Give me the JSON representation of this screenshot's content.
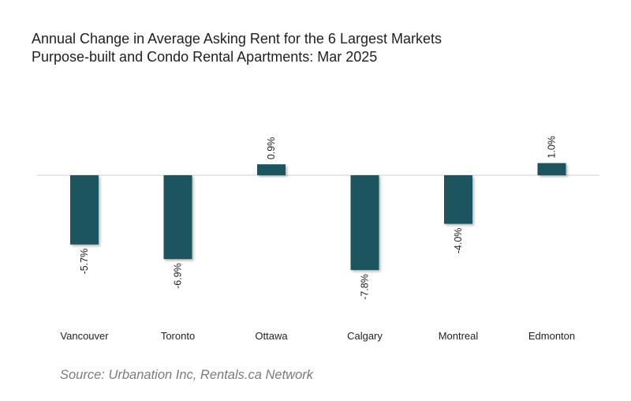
{
  "chart_data": {
    "type": "bar",
    "title": "Annual Change in Average Asking Rent for the 6 Largest Markets",
    "subtitle": "Purpose-built and Condo Rental Apartments: Mar 2025",
    "categories": [
      "Vancouver",
      "Toronto",
      "Ottawa",
      "Calgary",
      "Montreal",
      "Edmonton"
    ],
    "values": [
      -5.7,
      -6.9,
      0.9,
      -7.8,
      -4.0,
      1.0
    ],
    "data_labels": [
      "-5.7%",
      "-6.9%",
      "0.9%",
      "-7.8%",
      "-4.0%",
      "1.0%"
    ],
    "xlabel": "",
    "ylabel": "",
    "ylim": [
      -8,
      1.5
    ],
    "grid": false,
    "bar_color": "#1e5461",
    "axis_color": "#d9d9d9",
    "source": "Source: Urbanation Inc, Rentals.ca Network"
  }
}
